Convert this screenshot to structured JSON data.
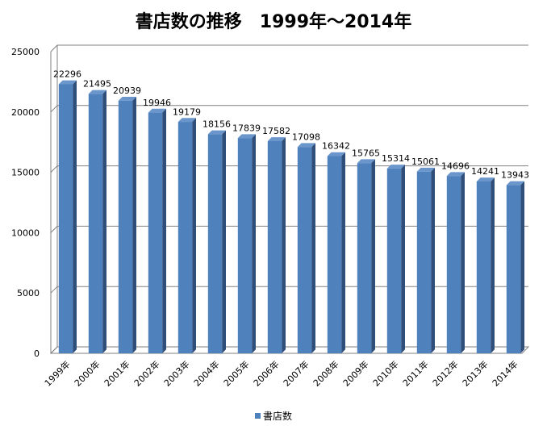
{
  "chart_data": {
    "type": "bar",
    "title": "書店数の推移　1999年〜2014年",
    "categories": [
      "1999年",
      "2000年",
      "2001年",
      "2002年",
      "2003年",
      "2004年",
      "2005年",
      "2006年",
      "2007年",
      "2008年",
      "2009年",
      "2010年",
      "2011年",
      "2012年",
      "2013年",
      "2014年"
    ],
    "series": [
      {
        "name": "書店数",
        "values": [
          22296,
          21495,
          20939,
          19946,
          19179,
          18156,
          17839,
          17582,
          17098,
          16342,
          15765,
          15314,
          15061,
          14696,
          14241,
          13943
        ],
        "color": "#4f81bd"
      }
    ],
    "ylim": [
      0,
      25000
    ],
    "yticks": [
      0,
      5000,
      10000,
      15000,
      20000,
      25000
    ],
    "grid": true,
    "legend_position": "bottom",
    "data_labels": true
  }
}
